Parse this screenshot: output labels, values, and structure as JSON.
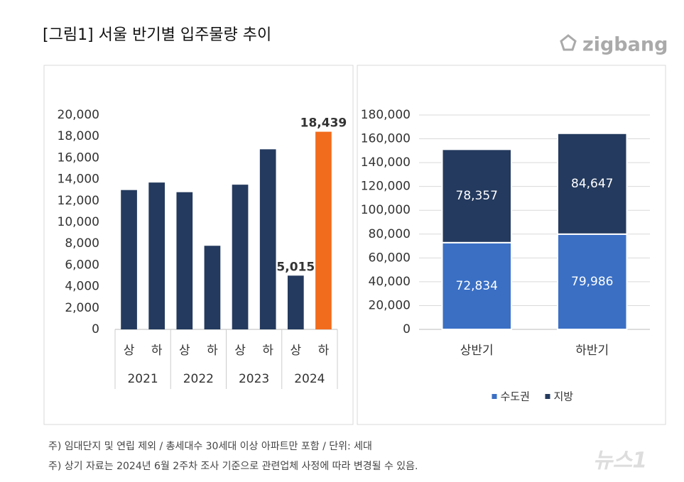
{
  "title": "[그림1] 서울 반기별 입주물량 추이",
  "logo": "zigbang",
  "notes": [
    "주) 임대단지 및 연립 제외 / 총세대수 30세대 이상 아파트만 포함 / 단위: 세대",
    "주) 상기 자료는 2024년 6월 2주차 조사 기준으로 관련업체 사정에 따라 변경될 수 있음."
  ],
  "watermark": "뉴스1",
  "chart_data": [
    {
      "type": "bar",
      "categories": [
        "상",
        "하",
        "상",
        "하",
        "상",
        "하",
        "상",
        "하"
      ],
      "groups": [
        "2021",
        "2022",
        "2023",
        "2024"
      ],
      "values": [
        13000,
        13700,
        12800,
        7800,
        13500,
        16800,
        5015,
        18439
      ],
      "value_labels": [
        null,
        null,
        null,
        null,
        null,
        null,
        "5,015",
        "18,439"
      ],
      "colors": [
        "#243a5e",
        "#243a5e",
        "#243a5e",
        "#243a5e",
        "#243a5e",
        "#243a5e",
        "#243a5e",
        "#f26c1d"
      ],
      "ylim": [
        0,
        20000
      ],
      "yticks": [
        0,
        {
          "value": 2000,
          "label": "2,000"
        },
        {
          "value": 4000,
          "label": "4,000"
        },
        {
          "value": 6000,
          "label": "6,000"
        },
        {
          "value": 8000,
          "label": "8,000"
        },
        {
          "value": 10000,
          "label": "10,000"
        },
        {
          "value": 12000,
          "label": "12,000"
        },
        {
          "value": 14000,
          "label": "14,000"
        },
        {
          "value": 16000,
          "label": "16,000"
        },
        {
          "value": 18000,
          "label": "18,000"
        },
        {
          "value": 20000,
          "label": "20,000"
        }
      ],
      "grid": false
    },
    {
      "type": "stacked_bar",
      "categories": [
        "상반기",
        "하반기"
      ],
      "series": [
        {
          "name": "수도권",
          "color": "#3a6fc4",
          "values": [
            72834,
            79986
          ],
          "value_labels": [
            "72,834",
            "79,986"
          ]
        },
        {
          "name": "지방",
          "color": "#243a5e",
          "values": [
            78357,
            84647
          ],
          "value_labels": [
            "78,357",
            "84,647"
          ]
        }
      ],
      "ylim": [
        0,
        180000
      ],
      "yticks": [
        0,
        {
          "value": 20000,
          "label": "20,000"
        },
        {
          "value": 40000,
          "label": "40,000"
        },
        {
          "value": 60000,
          "label": "60,000"
        },
        {
          "value": 80000,
          "label": "80,000"
        },
        {
          "value": 100000,
          "label": "100,000"
        },
        {
          "value": 120000,
          "label": "120,000"
        },
        {
          "value": 140000,
          "label": "140,000"
        },
        {
          "value": 160000,
          "label": "160,000"
        },
        {
          "value": 180000,
          "label": "180,000"
        }
      ],
      "grid": true,
      "legend": "bottom"
    }
  ]
}
